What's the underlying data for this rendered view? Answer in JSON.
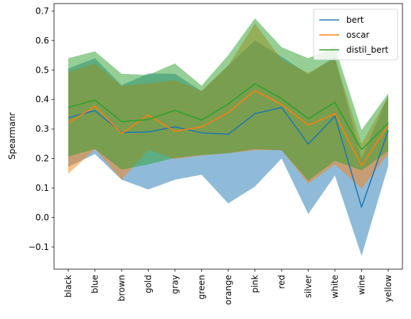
{
  "chart_data": {
    "type": "line",
    "xlabel": "",
    "ylabel": "Spearmanr",
    "ylim": [
      -0.175,
      0.725
    ],
    "yticks": [
      -0.1,
      0.0,
      0.1,
      0.2,
      0.3,
      0.4,
      0.5,
      0.6,
      0.7
    ],
    "ytick_labels": [
      "−0.1",
      "0.0",
      "0.1",
      "0.2",
      "0.3",
      "0.4",
      "0.5",
      "0.6",
      "0.7"
    ],
    "grid": false,
    "legend_position": "top-right",
    "categories": [
      "black",
      "blue",
      "brown",
      "gold",
      "gray",
      "green",
      "orange",
      "pink",
      "red",
      "silver",
      "white",
      "wine",
      "yellow"
    ],
    "series": [
      {
        "name": "bert",
        "color": "#1f77b4",
        "values": [
          0.338,
          0.362,
          0.288,
          0.29,
          0.307,
          0.287,
          0.282,
          0.352,
          0.373,
          0.249,
          0.344,
          0.035,
          0.295
        ],
        "lower": [
          0.172,
          0.215,
          0.128,
          0.095,
          0.128,
          0.145,
          0.048,
          0.105,
          0.2,
          0.012,
          0.142,
          -0.13,
          0.175
        ],
        "upper": [
          0.505,
          0.54,
          0.448,
          0.488,
          0.487,
          0.428,
          0.515,
          0.6,
          0.545,
          0.485,
          0.545,
          0.2,
          0.415
        ]
      },
      {
        "name": "oscar",
        "color": "#ff7f0e",
        "values": [
          0.32,
          0.377,
          0.285,
          0.347,
          0.292,
          0.307,
          0.355,
          0.43,
          0.383,
          0.313,
          0.352,
          0.175,
          0.313
        ],
        "lower": [
          0.148,
          0.232,
          0.128,
          0.23,
          0.198,
          0.21,
          0.218,
          0.228,
          0.228,
          0.115,
          0.18,
          0.098,
          0.215
        ],
        "upper": [
          0.493,
          0.522,
          0.445,
          0.455,
          0.465,
          0.43,
          0.515,
          0.658,
          0.535,
          0.49,
          0.54,
          0.25,
          0.41
        ]
      },
      {
        "name": "distil_bert",
        "color": "#2ca02c",
        "values": [
          0.373,
          0.398,
          0.325,
          0.332,
          0.363,
          0.33,
          0.385,
          0.453,
          0.403,
          0.335,
          0.39,
          0.23,
          0.32
        ],
        "lower": [
          0.207,
          0.232,
          0.162,
          0.18,
          0.202,
          0.212,
          0.218,
          0.232,
          0.228,
          0.125,
          0.192,
          0.16,
          0.225
        ],
        "upper": [
          0.54,
          0.563,
          0.487,
          0.483,
          0.522,
          0.447,
          0.55,
          0.675,
          0.577,
          0.54,
          0.578,
          0.297,
          0.42
        ]
      }
    ]
  }
}
